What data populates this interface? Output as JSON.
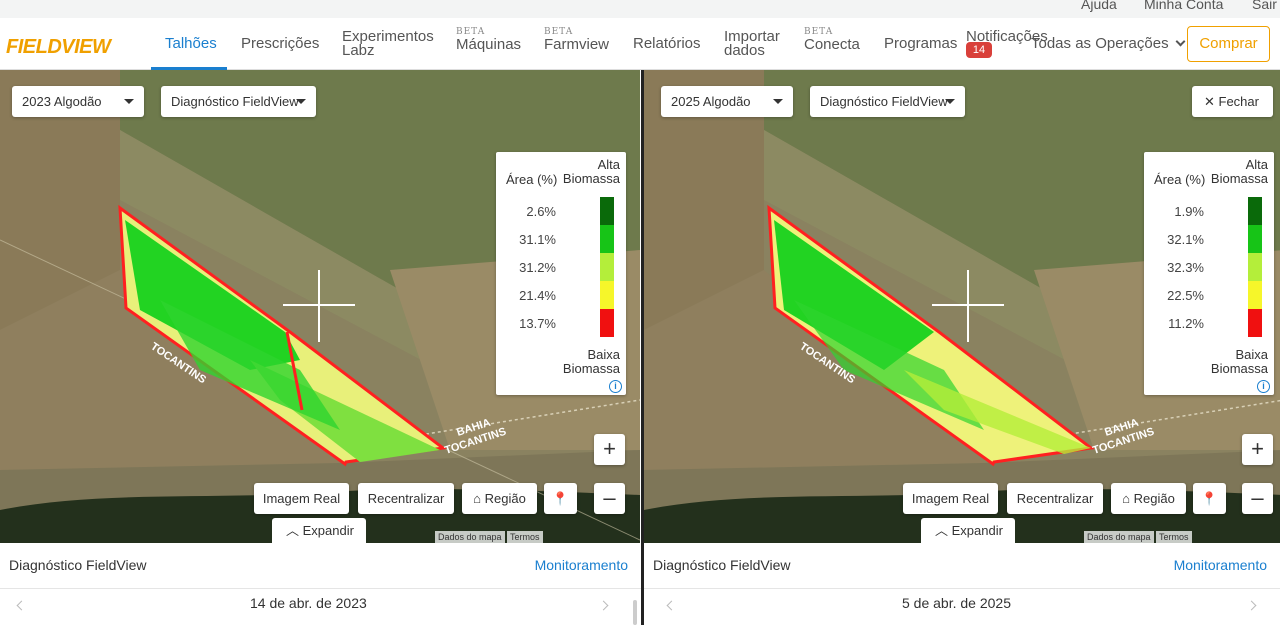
{
  "top_bar": {
    "help": "Ajuda",
    "account": "Minha Conta",
    "logout": "Sair"
  },
  "nav": {
    "logo": "FIELDVIEW",
    "items": [
      {
        "label": "Talhões",
        "active": true
      },
      {
        "label": "Prescrições"
      },
      {
        "label": "Experimentos",
        "label2": "Labz"
      },
      {
        "label": "Máquinas",
        "beta": "BETA"
      },
      {
        "label": "Farmview",
        "beta": "BETA"
      },
      {
        "label": "Relatórios"
      },
      {
        "label": "Importar",
        "label2": "dados"
      },
      {
        "label": "Conecta",
        "beta": "BETA"
      },
      {
        "label": "Programas"
      },
      {
        "label": "Notificações",
        "badge": "14"
      }
    ],
    "operations": "Todas as Operações",
    "buy": "Comprar"
  },
  "left": {
    "season": "2023 Algodão",
    "layer": "Diagnóstico FieldView",
    "legend": {
      "header_left": "Área (%)",
      "header_right": "Alta Biomassa",
      "footer": "Baixa Biomassa",
      "rows": [
        {
          "pct": "2.6%",
          "color": "#0a6a0a"
        },
        {
          "pct": "31.1%",
          "color": "#17c417"
        },
        {
          "pct": "31.2%",
          "color": "#b4ee3a"
        },
        {
          "pct": "21.4%",
          "color": "#f6f62a"
        },
        {
          "pct": "13.7%",
          "color": "#f01010"
        }
      ]
    },
    "buttons": {
      "real": "Imagem Real",
      "recenter": "Recentralizar",
      "region": "Região"
    },
    "expand": "Expandir",
    "attribution": {
      "data": "Dados do mapa",
      "terms": "Termos"
    },
    "labels": {
      "l1": "TOCANTINS",
      "l2a": "BAHIA",
      "l2b": "TOCANTINS"
    },
    "info_title": "Diagnóstico FieldView",
    "info_link": "Monitoramento",
    "date": "14 de abr. de 2023"
  },
  "right": {
    "season": "2025 Algodão",
    "layer": "Diagnóstico FieldView",
    "close": "Fechar",
    "legend": {
      "header_left": "Área (%)",
      "header_right": "Alta Biomassa",
      "footer": "Baixa Biomassa",
      "rows": [
        {
          "pct": "1.9%",
          "color": "#0a6a0a"
        },
        {
          "pct": "32.1%",
          "color": "#17c417"
        },
        {
          "pct": "32.3%",
          "color": "#b4ee3a"
        },
        {
          "pct": "22.5%",
          "color": "#f6f62a"
        },
        {
          "pct": "11.2%",
          "color": "#f01010"
        }
      ]
    },
    "buttons": {
      "real": "Imagem Real",
      "recenter": "Recentralizar",
      "region": "Região"
    },
    "expand": "Expandir",
    "attribution": {
      "data": "Dados do mapa",
      "terms": "Termos"
    },
    "labels": {
      "l1": "TOCANTINS",
      "l2a": "BAHIA",
      "l2b": "TOCANTINS"
    },
    "info_title": "Diagnóstico FieldView",
    "info_link": "Monitoramento",
    "date": "5 de abr. de 2025"
  }
}
